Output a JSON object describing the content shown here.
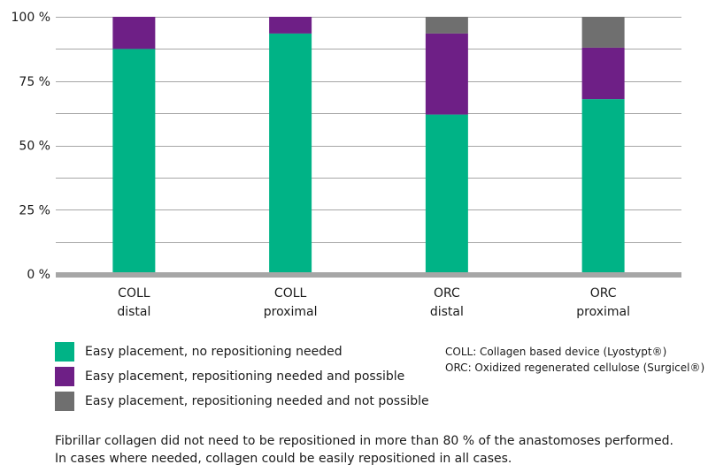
{
  "chart_data": {
    "type": "bar",
    "stacked": true,
    "categories": [
      [
        "COLL",
        "distal"
      ],
      [
        "COLL",
        "proximal"
      ],
      [
        "ORC",
        "distal"
      ],
      [
        "ORC",
        "proximal"
      ]
    ],
    "series": [
      {
        "name": "Easy placement, no repositioning needed",
        "color": "#00b386",
        "values": [
          87.5,
          93.5,
          62,
          68
        ]
      },
      {
        "name": "Easy placement, repositioning needed and possible",
        "color": "#6e1f86",
        "values": [
          12.5,
          6.5,
          31.5,
          20
        ]
      },
      {
        "name": "Easy placement, repositioning needed and not possible",
        "color": "#6f6f6f",
        "values": [
          0,
          0,
          6.5,
          12
        ]
      }
    ],
    "ylim": [
      0,
      100
    ],
    "yticks": [
      {
        "value": 0,
        "label": "0 %"
      },
      {
        "value": 25,
        "label": "25 %"
      },
      {
        "value": 50,
        "label": "50 %"
      },
      {
        "value": 75,
        "label": "75 %"
      },
      {
        "value": 100,
        "label": "100 %"
      }
    ],
    "grid": true,
    "gridlines_every": 12.5,
    "legend_position": "bottom-left"
  },
  "legend": [
    {
      "label": "Easy placement, no repositioning needed",
      "color": "#00b386"
    },
    {
      "label": "Easy placement, repositioning needed and possible",
      "color": "#6e1f86"
    },
    {
      "label": "Easy placement, repositioning needed and not possible",
      "color": "#6f6f6f"
    }
  ],
  "abbreviations": [
    "COLL: Collagen based device (Lyostypt®)",
    "ORC: Oxidized regenerated cellulose (Surgicel®)"
  ],
  "footnote": [
    "Fibrillar collagen did not need to be repositioned in more than 80 % of the anastomoses performed.",
    "In cases where needed, collagen could be easily repositioned in all cases."
  ]
}
